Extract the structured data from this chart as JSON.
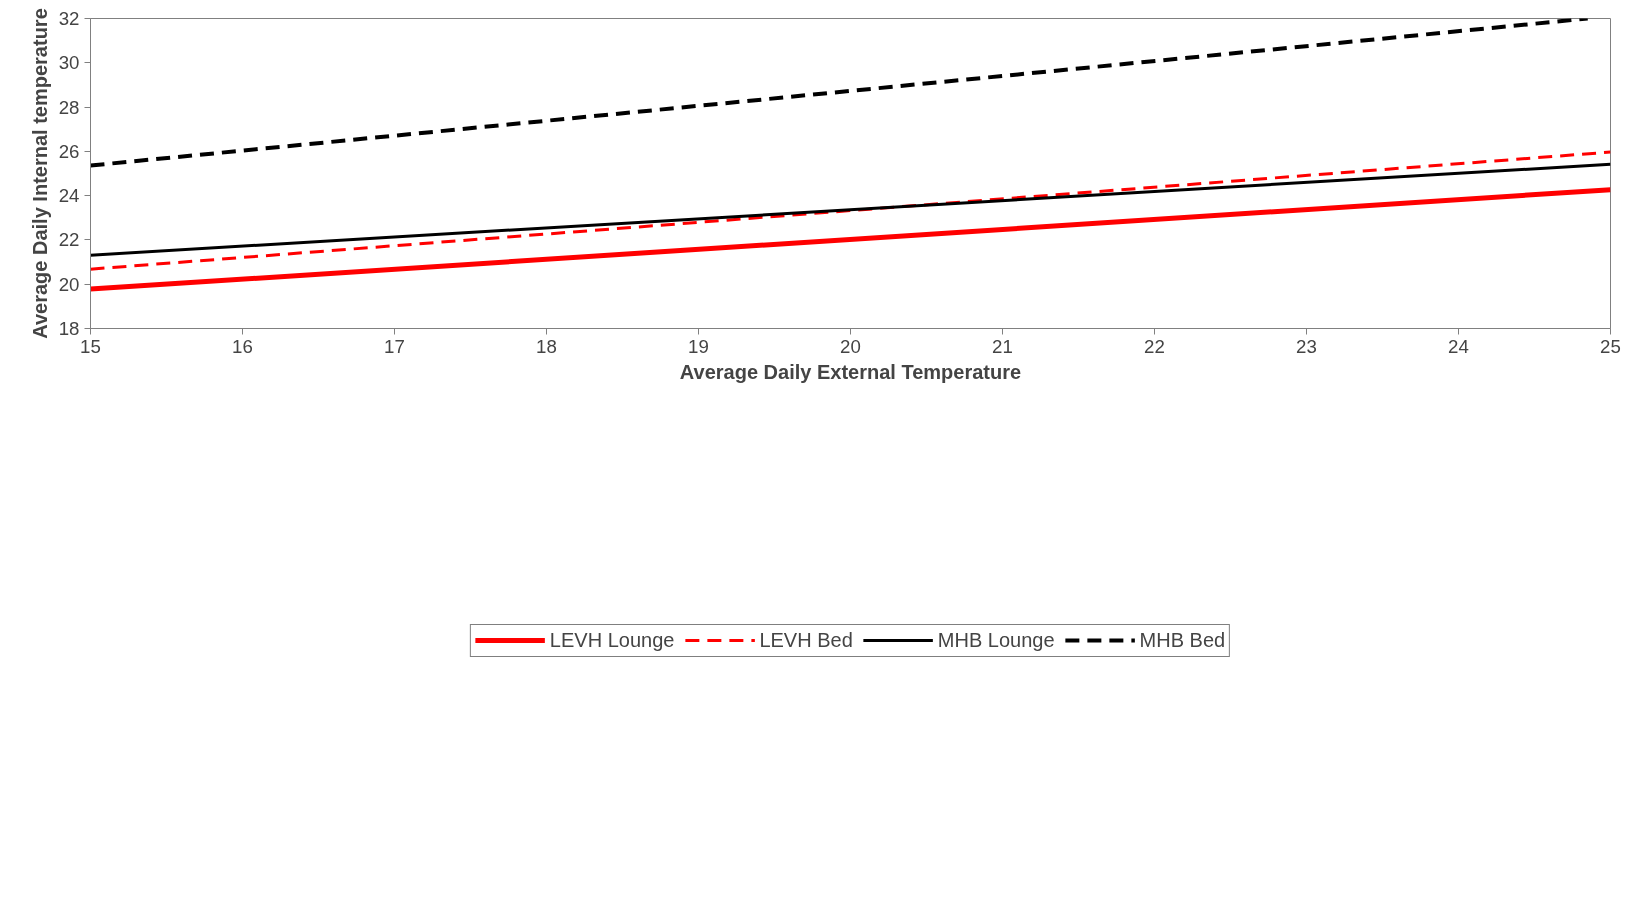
{
  "chart_data": {
    "type": "line",
    "xlabel": "Average Daily External Temperature",
    "ylabel": "Average Daily Internal temperature",
    "x": [
      15,
      25
    ],
    "series": [
      {
        "name": "LEVH Lounge",
        "color": "#ff0000",
        "values": [
          19.78,
          24.27
        ],
        "line_style": "solid"
      },
      {
        "name": "LEVH Bed",
        "color": "#ff0000",
        "values": [
          20.68,
          25.97
        ],
        "line_style": "dashed"
      },
      {
        "name": "MHB Lounge",
        "color": "#000000",
        "values": [
          21.31,
          25.42
        ],
        "line_style": "solid"
      },
      {
        "name": "MHB Bed",
        "color": "#000000",
        "x": [
          15,
          24.85
        ],
        "values": [
          25.36,
          32.0
        ],
        "line_style": "dashed"
      }
    ],
    "xlim": [
      15,
      25
    ],
    "xticks": [
      15,
      16,
      17,
      18,
      19,
      20,
      21,
      22,
      23,
      24,
      25
    ],
    "ylim": [
      18,
      32
    ],
    "yticks": [
      18,
      20,
      22,
      24,
      26,
      28,
      30,
      32
    ],
    "grid": false,
    "legend": "bottom",
    "marker": "none"
  }
}
